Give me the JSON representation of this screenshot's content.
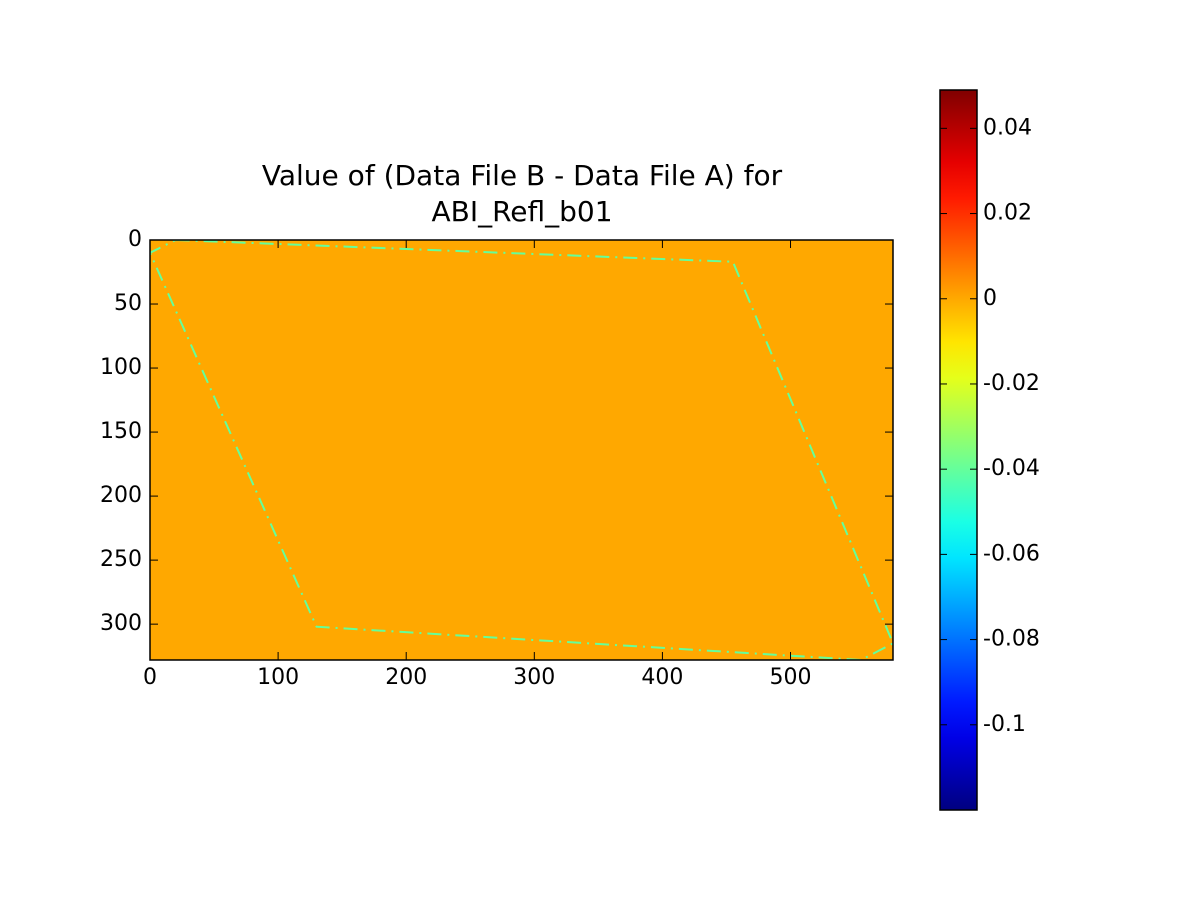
{
  "chart_data": {
    "type": "image",
    "title": [
      "Value of (Data File B - Data File A) for",
      "ABI_Refl_b01"
    ],
    "xlim": [
      0,
      580
    ],
    "ylim": [
      328,
      0
    ],
    "xticks": [
      0,
      100,
      200,
      300,
      400,
      500
    ],
    "yticks": [
      0,
      50,
      100,
      150,
      200,
      250,
      300
    ],
    "colormap": "jet",
    "clim": [
      -0.12,
      0.049
    ],
    "cticks": [
      0.04,
      0.02,
      0,
      -0.02,
      -0.04,
      -0.06,
      -0.08,
      -0.1
    ],
    "fill_value": 0,
    "outline": {
      "x": [
        20,
        455,
        580,
        555,
        130,
        0,
        20
      ],
      "y": [
        0,
        17,
        315,
        328,
        302,
        10,
        0
      ],
      "value": -0.04
    }
  }
}
